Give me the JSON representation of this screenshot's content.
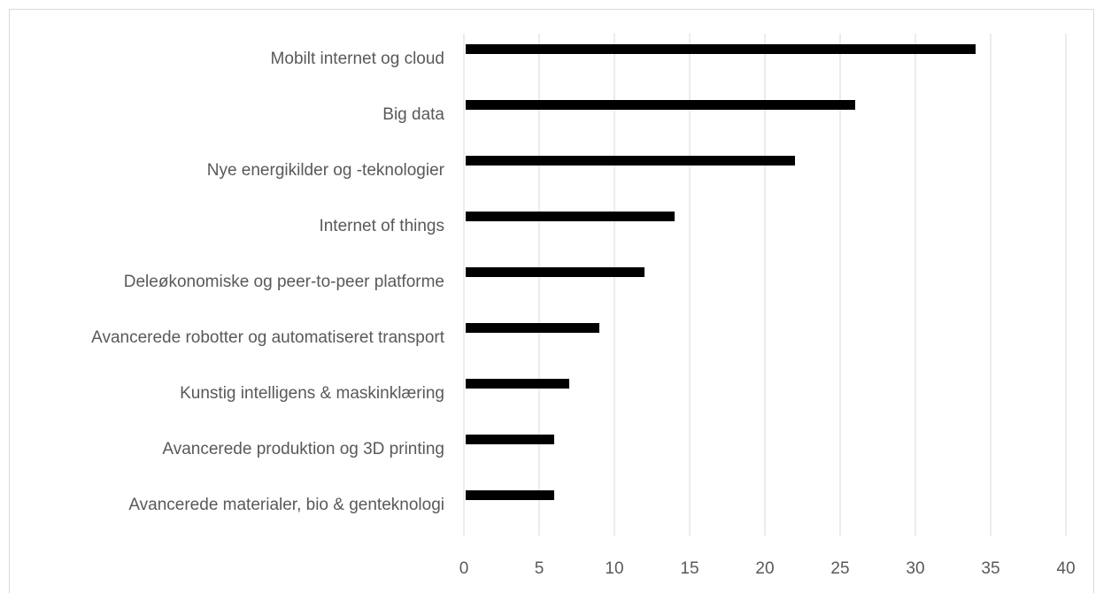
{
  "chart_data": {
    "type": "bar",
    "orientation": "horizontal",
    "title": "",
    "xlabel": "",
    "ylabel": "",
    "categories": [
      "Mobilt internet og cloud",
      "Big data",
      "Nye energikilder og -teknologier",
      "Internet of things",
      "Deleøkonomiske og peer-to-peer platforme",
      "Avancerede robotter og automatiseret transport",
      "Kunstig intelligens & maskinklæring",
      "Avancerede produktion og 3D printing",
      "Avancerede materialer, bio & genteknologi"
    ],
    "values": [
      34,
      26,
      22,
      14,
      12,
      9,
      7,
      6,
      6
    ],
    "xlim": [
      0,
      40
    ],
    "xticks": [
      "0",
      "5",
      "10",
      "15",
      "20",
      "25",
      "30",
      "35",
      "40"
    ],
    "grid": "vertical",
    "legend": "none",
    "bar_color": "#000000",
    "grid_color": "#d9d9d9"
  }
}
